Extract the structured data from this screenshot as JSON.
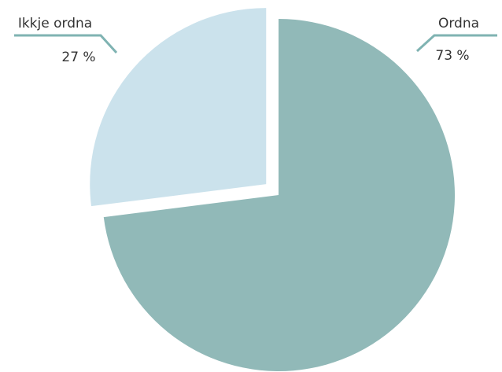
{
  "chart_data": {
    "type": "pie",
    "categories": [
      "Ordna",
      "Ikkje ordna"
    ],
    "values": [
      73,
      27
    ],
    "value_labels": [
      "73 %",
      "27 %"
    ],
    "colors": [
      "#91b9b8",
      "#cbe2ec"
    ],
    "leader_color": "#7fb3b2"
  }
}
